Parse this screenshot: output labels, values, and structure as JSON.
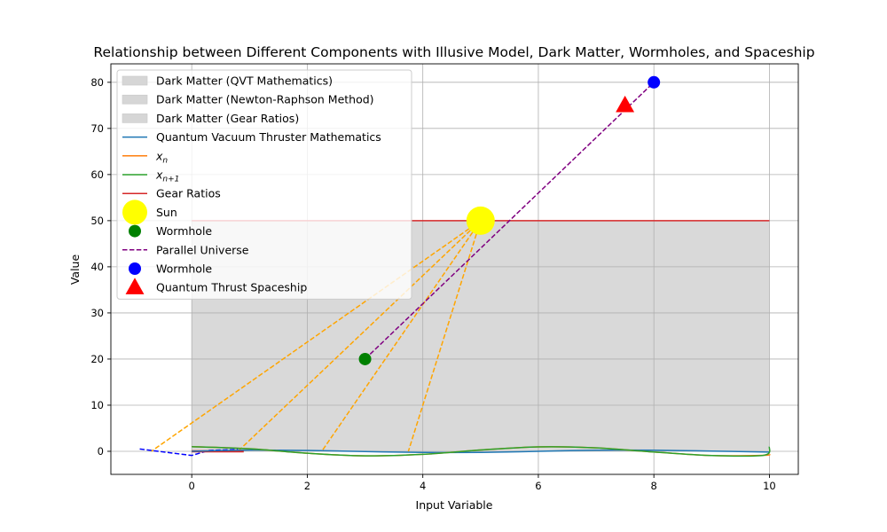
{
  "chart_data": {
    "type": "line",
    "title": "Relationship between Different Components with Illusive Model, Dark Matter, Wormholes, and Spaceship",
    "xlabel": "Input Variable",
    "ylabel": "Value",
    "xlim": [
      -1.4,
      10.5
    ],
    "ylim": [
      -5,
      84
    ],
    "x_ticks": [
      0,
      2,
      4,
      6,
      8,
      10
    ],
    "y_ticks": [
      0,
      10,
      20,
      30,
      40,
      50,
      60,
      70,
      80
    ],
    "grid": true,
    "legend_position": "top-left",
    "colors": {
      "dark_matter": "#d6d6d6",
      "qvt": "#1f77b4",
      "xn": "#ff7f0e",
      "xn1": "#2ca02c",
      "gear": "#d62728",
      "sun": "#ffff00",
      "wormhole_green": "#008000",
      "parallel": "#800080",
      "wormhole_blue": "#0000ff",
      "spaceship": "#ff0000",
      "sun_rays": "#ffa500",
      "small_dashes": "#0000ff",
      "grid": "#b0b0b0"
    },
    "dark_matter_regions": [
      {
        "name": "Dark Matter (QVT Mathematics)",
        "x": [
          0,
          10
        ],
        "y_low": 0,
        "y_high": 50
      },
      {
        "name": "Dark Matter (Newton-Raphson Method)",
        "x": [
          0,
          10
        ],
        "y_low": 0,
        "y_high": 50
      },
      {
        "name": "Dark Matter (Gear Ratios)",
        "x": [
          0,
          10
        ],
        "y_low": 0,
        "y_high": 50
      }
    ],
    "series": [
      {
        "name": "Quantum Vacuum Thruster Mathematics",
        "x": [
          0,
          1,
          2,
          3,
          4,
          5,
          6,
          7,
          8,
          9,
          10
        ],
        "y": [
          0.0,
          0.26,
          0.18,
          -0.05,
          -0.25,
          -0.24,
          0.0,
          0.24,
          0.25,
          0.05,
          -0.18
        ]
      },
      {
        "name": "$x_n$",
        "x": [
          0,
          1,
          2,
          3,
          4,
          5,
          6,
          7,
          8,
          9,
          9.9,
          10
        ],
        "y": [
          1.0,
          0.54,
          -0.42,
          -0.99,
          -0.65,
          0.28,
          0.96,
          0.75,
          -0.15,
          -0.91,
          -0.87,
          -0.6
        ]
      },
      {
        "name": "$x_{n+1}$",
        "x": [
          0,
          1,
          2,
          3,
          4,
          5,
          6,
          7,
          8,
          9,
          9.9,
          10
        ],
        "y": [
          1.0,
          0.54,
          -0.42,
          -0.99,
          -0.65,
          0.28,
          0.96,
          0.75,
          -0.15,
          -0.91,
          -0.87,
          1.0
        ]
      },
      {
        "name": "Gear Ratios",
        "x": [
          0,
          10
        ],
        "y": [
          50,
          50
        ]
      }
    ],
    "sun": {
      "name": "Sun",
      "x": 5,
      "y": 50
    },
    "wormhole_green": {
      "name": "Wormhole",
      "x": 3,
      "y": 20
    },
    "parallel_universe": {
      "name": "Parallel Universe",
      "x": [
        3,
        8
      ],
      "y": [
        20,
        80
      ]
    },
    "wormhole_blue": {
      "name": "Wormhole",
      "x": 8,
      "y": 80
    },
    "spaceship": {
      "name": "Quantum Thrust Spaceship",
      "x": 7.5,
      "y": 75
    },
    "sun_rays": {
      "x0": 5,
      "y0": 50,
      "targets": [
        [
          -0.7,
          0
        ],
        [
          0.8,
          0
        ],
        [
          2.25,
          0
        ],
        [
          3.75,
          0
        ]
      ]
    },
    "small_dashes": [
      [
        -0.9,
        0.5
      ],
      [
        0.0,
        -0.9
      ],
      [
        0.3,
        0.2
      ],
      [
        0.8,
        0.4
      ]
    ],
    "small_red_segment": {
      "x": [
        0,
        0.9
      ],
      "y": [
        0,
        0
      ]
    }
  }
}
